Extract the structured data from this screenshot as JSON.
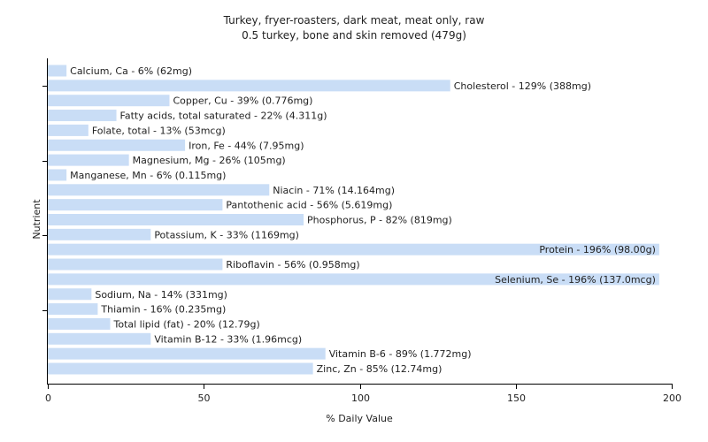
{
  "chart_data": {
    "type": "bar",
    "orientation": "horizontal",
    "title": "Turkey, fryer-roasters, dark meat, meat only, raw",
    "subtitle": "0.5 turkey, bone and skin removed (479g)",
    "xlabel": "% Daily Value",
    "ylabel": "Nutrient",
    "xlim": [
      0,
      200
    ],
    "xticks": [
      0,
      50,
      100,
      150,
      200
    ],
    "grid": false,
    "legend": "none",
    "bar_color": "#c9ddf6",
    "categories": [
      "Calcium, Ca",
      "Cholesterol",
      "Copper, Cu",
      "Fatty acids, total saturated",
      "Folate, total",
      "Iron, Fe",
      "Magnesium, Mg",
      "Manganese, Mn",
      "Niacin",
      "Pantothenic acid",
      "Phosphorus, P",
      "Potassium, K",
      "Protein",
      "Riboflavin",
      "Selenium, Se",
      "Sodium, Na",
      "Thiamin",
      "Total lipid (fat)",
      "Vitamin B-12",
      "Vitamin B-6",
      "Zinc, Zn"
    ],
    "values": [
      6,
      129,
      39,
      22,
      13,
      44,
      26,
      6,
      71,
      56,
      82,
      33,
      196,
      56,
      196,
      14,
      16,
      20,
      33,
      89,
      85
    ],
    "labels": [
      "Calcium, Ca - 6% (62mg)",
      "Cholesterol - 129% (388mg)",
      "Copper, Cu - 39% (0.776mg)",
      "Fatty acids, total saturated - 22% (4.311g)",
      "Folate, total - 13% (53mcg)",
      "Iron, Fe - 44% (7.95mg)",
      "Magnesium, Mg - 26% (105mg)",
      "Manganese, Mn - 6% (0.115mg)",
      "Niacin - 71% (14.164mg)",
      "Pantothenic acid - 56% (5.619mg)",
      "Phosphorus, P - 82% (819mg)",
      "Potassium, K - 33% (1169mg)",
      "Protein - 196% (98.00g)",
      "Riboflavin - 56% (0.958mg)",
      "Selenium, Se - 196% (137.0mcg)",
      "Sodium, Na - 14% (331mg)",
      "Thiamin - 16% (0.235mg)",
      "Total lipid (fat) - 20% (12.79g)",
      "Vitamin B-12 - 33% (1.96mcg)",
      "Vitamin B-6 - 89% (1.772mg)",
      "Zinc, Zn - 85% (12.74mg)"
    ]
  }
}
